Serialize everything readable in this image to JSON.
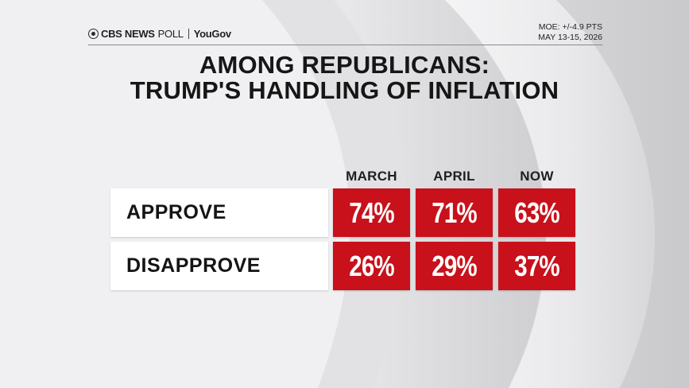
{
  "header": {
    "logo_brand": "CBS NEWS",
    "logo_poll": "POLL",
    "logo_partner": "YouGov",
    "moe": "MOE: +/-4.9 PTS",
    "dates": "MAY 13-15, 2026"
  },
  "chart_data": {
    "type": "table",
    "title_line1": "AMONG REPUBLICANS:",
    "title_line2": "TRUMP'S HANDLING OF INFLATION",
    "columns": [
      "MARCH",
      "APRIL",
      "NOW"
    ],
    "rows": [
      {
        "label": "APPROVE",
        "values": [
          "74%",
          "71%",
          "63%"
        ]
      },
      {
        "label": "DISAPPROVE",
        "values": [
          "26%",
          "29%",
          "37%"
        ]
      }
    ],
    "accent_color": "#c8111b"
  }
}
